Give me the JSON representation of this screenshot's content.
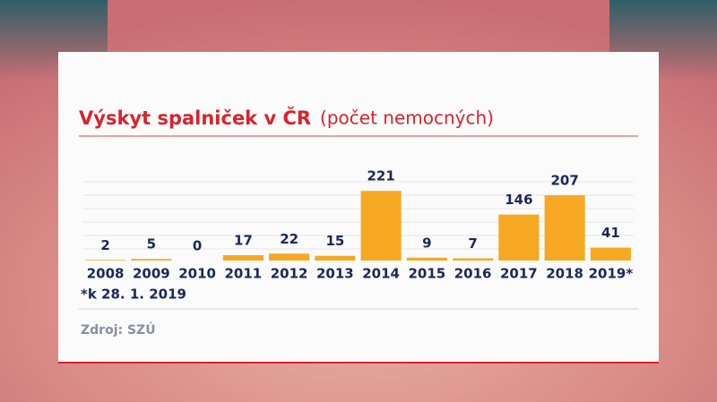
{
  "chart_data": {
    "type": "bar",
    "title": "Výskyt spalniček v ČR",
    "subtitle": "(počet nemocných)",
    "categories": [
      "2008",
      "2009",
      "2010",
      "2011",
      "2012",
      "2013",
      "2014",
      "2015",
      "2016",
      "2017",
      "2018",
      "2019*"
    ],
    "values": [
      2,
      5,
      0,
      17,
      22,
      15,
      221,
      9,
      7,
      146,
      207,
      41
    ],
    "color": "#f7a823",
    "ylim": [
      0,
      250
    ],
    "note": "*k 28. 1. 2019",
    "source": "Zdroj: SZÚ"
  }
}
